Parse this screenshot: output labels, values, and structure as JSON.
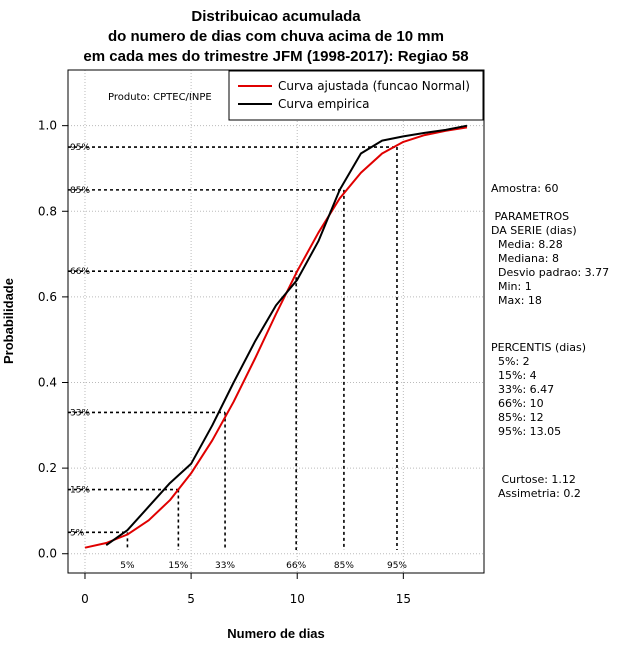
{
  "chart_data": {
    "type": "line",
    "title": [
      "Distribuicao acumulada",
      "do numero de dias com chuva acima de 10 mm",
      "em cada mes do trimestre JFM (1998-2017): Regiao 58"
    ],
    "xlabel": "Numero de dias",
    "ylabel": "Probabilidade",
    "xlim": [
      -0.8,
      18.8
    ],
    "ylim": [
      -0.045,
      1.13
    ],
    "x_ticks": [
      0,
      5,
      10,
      15
    ],
    "y_ticks": [
      0.0,
      0.2,
      0.4,
      0.6,
      0.8,
      1.0
    ],
    "y_tick_labels": [
      "0.0",
      "0.2",
      "0.4",
      "0.6",
      "0.8",
      "1.0"
    ],
    "product_label": "Produto: CPTEC/INPE",
    "legend": [
      {
        "label": "Curva ajustada (funcao Normal)",
        "color": "#e00000"
      },
      {
        "label": "Curva empirica",
        "color": "#000000"
      }
    ],
    "series": [
      {
        "name": "Curva ajustada (funcao Normal)",
        "color": "#e00000",
        "x": [
          0,
          1,
          2,
          3,
          4,
          5,
          6,
          7,
          8,
          9,
          10,
          11,
          12,
          13,
          14,
          15,
          16,
          17,
          18
        ],
        "y": [
          0.014,
          0.025,
          0.045,
          0.078,
          0.125,
          0.188,
          0.265,
          0.355,
          0.455,
          0.56,
          0.66,
          0.75,
          0.83,
          0.89,
          0.935,
          0.962,
          0.978,
          0.988,
          0.996
        ]
      },
      {
        "name": "Curva empirica",
        "color": "#000000",
        "x": [
          1,
          2,
          3,
          4,
          5,
          6,
          7,
          8,
          9,
          10,
          11,
          12,
          13,
          14,
          15,
          16,
          17,
          18
        ],
        "y": [
          0.02,
          0.055,
          0.11,
          0.165,
          0.21,
          0.3,
          0.4,
          0.495,
          0.58,
          0.64,
          0.73,
          0.85,
          0.935,
          0.965,
          0.975,
          0.983,
          0.99,
          1.0
        ]
      }
    ],
    "percentile_markers": [
      {
        "label": "5%",
        "prob": 0.05,
        "value": 2
      },
      {
        "label": "15%",
        "prob": 0.15,
        "value": 4.4
      },
      {
        "label": "33%",
        "prob": 0.33,
        "value": 6.6
      },
      {
        "label": "66%",
        "prob": 0.66,
        "value": 9.95
      },
      {
        "label": "85%",
        "prob": 0.85,
        "value": 12.2
      },
      {
        "label": "95%",
        "prob": 0.95,
        "value": 14.7
      }
    ]
  },
  "stats": {
    "amostra": "Amostra: 60",
    "parametros_title": " PARAMETROS\nDA SERIE (dias)",
    "parametros": "  Media: 8.28\n  Mediana: 8\n  Desvio padrao: 3.77\n  Min: 1\n  Max: 18",
    "percentis_title": "PERCENTIS (dias)",
    "percentis": "  5%: 2\n  15%: 4\n  33%: 6.47\n  66%: 10\n  85%: 12\n  95%: 13.05",
    "forma": " Curtose: 1.12\nAssimetria: 0.2"
  }
}
